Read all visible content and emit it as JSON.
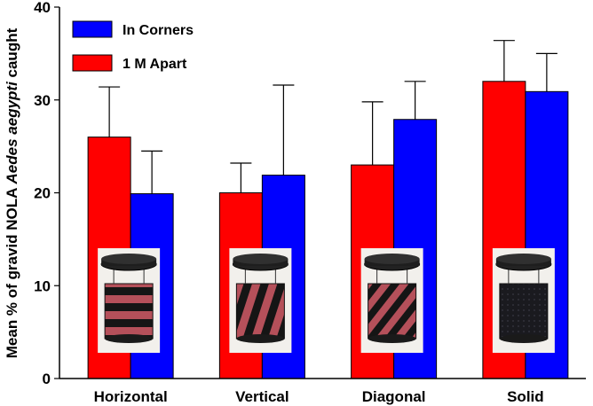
{
  "chart_data": {
    "type": "bar",
    "categories": [
      "Horizontal",
      "Vertical",
      "Diagonal",
      "Solid"
    ],
    "series": [
      {
        "name": "1 M Apart",
        "color": "#ff0000",
        "values": [
          26,
          20,
          23,
          32
        ],
        "error": [
          5.4,
          3.2,
          6.8,
          4.4
        ]
      },
      {
        "name": "In Corners",
        "color": "#0000ff",
        "values": [
          19.9,
          21.9,
          27.9,
          30.9
        ],
        "error": [
          4.6,
          9.7,
          4.1,
          4.1
        ]
      }
    ],
    "ylabel_pre": "Mean % of gravid NOLA ",
    "ylabel_italic": "Aedes aegypti",
    "ylabel_post": " caught",
    "ylim": [
      0,
      40
    ],
    "yticks": [
      0,
      10,
      20,
      30,
      40
    ],
    "legend_placement": "top-left",
    "grid": false,
    "images": [
      {
        "category": "Horizontal",
        "icon": "horizontal-striped-trap-photo"
      },
      {
        "category": "Vertical",
        "icon": "vertical-striped-trap-photo"
      },
      {
        "category": "Diagonal",
        "icon": "diagonal-striped-trap-photo"
      },
      {
        "category": "Solid",
        "icon": "solid-trap-photo"
      }
    ]
  }
}
